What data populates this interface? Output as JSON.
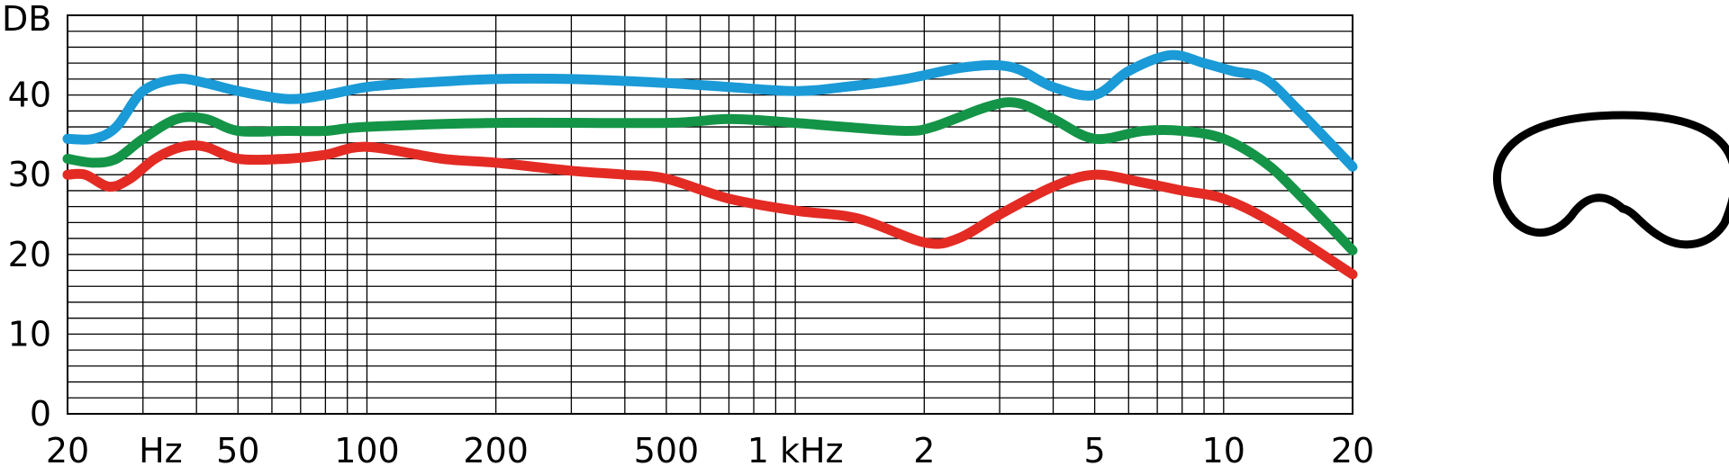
{
  "chart_data": {
    "type": "line",
    "x_scale": "log",
    "x_range": [
      20,
      20000
    ],
    "ylim": [
      0,
      50
    ],
    "grid": true,
    "ylabel": "DB",
    "y_ticks": [
      "0",
      "10",
      "20",
      "30",
      "40"
    ],
    "x_ticks": [
      "20",
      "Hz",
      "50",
      "100",
      "200",
      "500",
      "1 kHz",
      "2",
      "5",
      "10",
      "20"
    ],
    "x_tick_values": [
      20,
      33,
      50,
      100,
      200,
      500,
      1000,
      2000,
      5000,
      10000,
      20000
    ],
    "series": [
      {
        "color": "#1a9ad6",
        "x": [
          20,
          23,
          26,
          30,
          36,
          42,
          50,
          65,
          80,
          100,
          130,
          200,
          300,
          500,
          700,
          1000,
          1300,
          1800,
          2500,
          3200,
          4000,
          5000,
          6000,
          7500,
          9000,
          10500,
          12500,
          15000,
          20000
        ],
        "y": [
          34.5,
          34.5,
          36,
          40.5,
          42,
          41.5,
          40.5,
          39.5,
          40,
          41,
          41.5,
          42,
          42,
          41.5,
          41,
          40.5,
          41,
          42,
          43.5,
          43.5,
          41,
          40,
          43,
          45,
          44,
          43,
          42,
          38,
          31
        ]
      },
      {
        "color": "#149447",
        "x": [
          20,
          23,
          26,
          30,
          36,
          42,
          50,
          65,
          80,
          100,
          200,
          500,
          700,
          1000,
          1300,
          1800,
          2100,
          2800,
          3300,
          4000,
          5000,
          6500,
          8000,
          10000,
          12500,
          15000,
          20000
        ],
        "y": [
          32,
          31.5,
          32,
          34.5,
          37,
          37,
          35.5,
          35.5,
          35.5,
          36,
          36.5,
          36.5,
          37,
          36.5,
          36,
          35.5,
          36,
          38.5,
          39,
          37,
          34.5,
          35.5,
          35.5,
          34.5,
          31.5,
          27.5,
          20.5
        ]
      },
      {
        "color": "#e32b24",
        "x": [
          20,
          22,
          25,
          28,
          32,
          37,
          42,
          50,
          65,
          80,
          100,
          150,
          200,
          300,
          400,
          500,
          700,
          1000,
          1400,
          2000,
          2400,
          3000,
          4000,
          5000,
          6500,
          8000,
          10000,
          13000,
          20000
        ],
        "y": [
          30,
          30,
          28.5,
          29.5,
          32,
          33.5,
          33.5,
          32,
          32,
          32.5,
          33.5,
          32,
          31.5,
          30.5,
          30,
          29.5,
          27,
          25.5,
          24.5,
          21.5,
          22,
          25,
          28.5,
          30,
          29,
          28,
          27,
          24,
          17.5
        ]
      }
    ],
    "polar_pattern": "cardioid"
  }
}
